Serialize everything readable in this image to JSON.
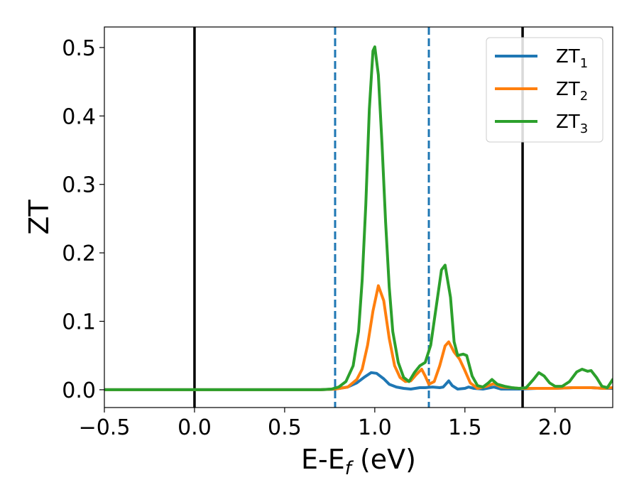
{
  "chart_data": {
    "type": "line",
    "xlabel": {
      "main": "E-E",
      "sub": "f",
      "suffix": " (eV)"
    },
    "ylabel": "ZT",
    "xlim": [
      -0.5,
      2.32
    ],
    "ylim": [
      -0.026,
      0.53
    ],
    "xticks": [
      -0.5,
      0.0,
      0.5,
      1.0,
      1.5,
      2.0
    ],
    "xtick_labels": [
      "−0.5",
      "0.0",
      "0.5",
      "1.0",
      "1.5",
      "2.0"
    ],
    "yticks": [
      0.0,
      0.1,
      0.2,
      0.3,
      0.4,
      0.5
    ],
    "ytick_labels": [
      "0.0",
      "0.1",
      "0.2",
      "0.3",
      "0.4",
      "0.5"
    ],
    "legend_position": "top-right",
    "vertical_lines": [
      {
        "x": 0.0,
        "style": "solid",
        "color": "#000000"
      },
      {
        "x": 1.82,
        "style": "solid",
        "color": "#000000"
      },
      {
        "x": 0.78,
        "style": "dashed",
        "color": "#1f77b4"
      },
      {
        "x": 1.3,
        "style": "dashed",
        "color": "#1f77b4"
      }
    ],
    "series": [
      {
        "name": "ZT",
        "sub": "1",
        "color": "#1f77b4",
        "points": [
          [
            -0.5,
            0
          ],
          [
            0.7,
            0
          ],
          [
            0.78,
            0.001
          ],
          [
            0.85,
            0.004
          ],
          [
            0.9,
            0.01
          ],
          [
            0.94,
            0.018
          ],
          [
            0.98,
            0.025
          ],
          [
            1.01,
            0.024
          ],
          [
            1.05,
            0.016
          ],
          [
            1.08,
            0.008
          ],
          [
            1.12,
            0.004
          ],
          [
            1.16,
            0.002
          ],
          [
            1.2,
            0.001
          ],
          [
            1.25,
            0.003
          ],
          [
            1.28,
            0.003
          ],
          [
            1.32,
            0.004
          ],
          [
            1.36,
            0.003
          ],
          [
            1.38,
            0.004
          ],
          [
            1.41,
            0.013
          ],
          [
            1.43,
            0.006
          ],
          [
            1.46,
            0.001
          ],
          [
            1.5,
            0.002
          ],
          [
            1.52,
            0.004
          ],
          [
            1.55,
            0.002
          ],
          [
            1.6,
            0.001
          ],
          [
            1.66,
            0.004
          ],
          [
            1.7,
            0.001
          ],
          [
            1.8,
            0.001
          ],
          [
            1.9,
            0.002
          ],
          [
            2.0,
            0.002
          ],
          [
            2.1,
            0.003
          ],
          [
            2.2,
            0.003
          ],
          [
            2.27,
            0.002
          ],
          [
            2.32,
            0.002
          ]
        ]
      },
      {
        "name": "ZT",
        "sub": "2",
        "color": "#ff7f0e",
        "points": [
          [
            -0.5,
            0
          ],
          [
            0.7,
            0
          ],
          [
            0.78,
            0.001
          ],
          [
            0.85,
            0.004
          ],
          [
            0.9,
            0.015
          ],
          [
            0.93,
            0.03
          ],
          [
            0.96,
            0.065
          ],
          [
            0.99,
            0.115
          ],
          [
            1.02,
            0.152
          ],
          [
            1.05,
            0.13
          ],
          [
            1.08,
            0.075
          ],
          [
            1.11,
            0.035
          ],
          [
            1.14,
            0.018
          ],
          [
            1.17,
            0.012
          ],
          [
            1.2,
            0.013
          ],
          [
            1.23,
            0.022
          ],
          [
            1.26,
            0.03
          ],
          [
            1.28,
            0.02
          ],
          [
            1.3,
            0.008
          ],
          [
            1.33,
            0.012
          ],
          [
            1.36,
            0.035
          ],
          [
            1.39,
            0.064
          ],
          [
            1.41,
            0.07
          ],
          [
            1.44,
            0.055
          ],
          [
            1.47,
            0.045
          ],
          [
            1.5,
            0.028
          ],
          [
            1.53,
            0.01
          ],
          [
            1.57,
            0.002
          ],
          [
            1.62,
            0.005
          ],
          [
            1.66,
            0.009
          ],
          [
            1.7,
            0.004
          ],
          [
            1.75,
            0.003
          ],
          [
            1.8,
            0.002
          ],
          [
            1.9,
            0.002
          ],
          [
            2.0,
            0.002
          ],
          [
            2.1,
            0.003
          ],
          [
            2.2,
            0.003
          ],
          [
            2.27,
            0.002
          ],
          [
            2.32,
            0.003
          ]
        ]
      },
      {
        "name": "ZT",
        "sub": "3",
        "color": "#2ca02c",
        "points": [
          [
            -0.5,
            0
          ],
          [
            0.7,
            0
          ],
          [
            0.76,
            0.001
          ],
          [
            0.8,
            0.004
          ],
          [
            0.84,
            0.012
          ],
          [
            0.88,
            0.035
          ],
          [
            0.91,
            0.085
          ],
          [
            0.93,
            0.16
          ],
          [
            0.95,
            0.27
          ],
          [
            0.97,
            0.41
          ],
          [
            0.99,
            0.495
          ],
          [
            1.0,
            0.501
          ],
          [
            1.02,
            0.46
          ],
          [
            1.04,
            0.36
          ],
          [
            1.06,
            0.245
          ],
          [
            1.08,
            0.15
          ],
          [
            1.1,
            0.085
          ],
          [
            1.13,
            0.04
          ],
          [
            1.16,
            0.018
          ],
          [
            1.19,
            0.012
          ],
          [
            1.22,
            0.025
          ],
          [
            1.25,
            0.035
          ],
          [
            1.28,
            0.04
          ],
          [
            1.31,
            0.065
          ],
          [
            1.34,
            0.12
          ],
          [
            1.37,
            0.175
          ],
          [
            1.39,
            0.182
          ],
          [
            1.42,
            0.135
          ],
          [
            1.44,
            0.07
          ],
          [
            1.46,
            0.05
          ],
          [
            1.49,
            0.052
          ],
          [
            1.51,
            0.05
          ],
          [
            1.54,
            0.02
          ],
          [
            1.57,
            0.006
          ],
          [
            1.6,
            0.004
          ],
          [
            1.63,
            0.01
          ],
          [
            1.65,
            0.015
          ],
          [
            1.68,
            0.008
          ],
          [
            1.72,
            0.005
          ],
          [
            1.76,
            0.003
          ],
          [
            1.8,
            0.002
          ],
          [
            1.84,
            0.003
          ],
          [
            1.88,
            0.015
          ],
          [
            1.91,
            0.025
          ],
          [
            1.94,
            0.02
          ],
          [
            1.97,
            0.01
          ],
          [
            2.0,
            0.005
          ],
          [
            2.04,
            0.005
          ],
          [
            2.08,
            0.012
          ],
          [
            2.12,
            0.026
          ],
          [
            2.15,
            0.03
          ],
          [
            2.18,
            0.027
          ],
          [
            2.2,
            0.028
          ],
          [
            2.23,
            0.018
          ],
          [
            2.26,
            0.005
          ],
          [
            2.29,
            0.003
          ],
          [
            2.32,
            0.015
          ]
        ]
      }
    ]
  }
}
